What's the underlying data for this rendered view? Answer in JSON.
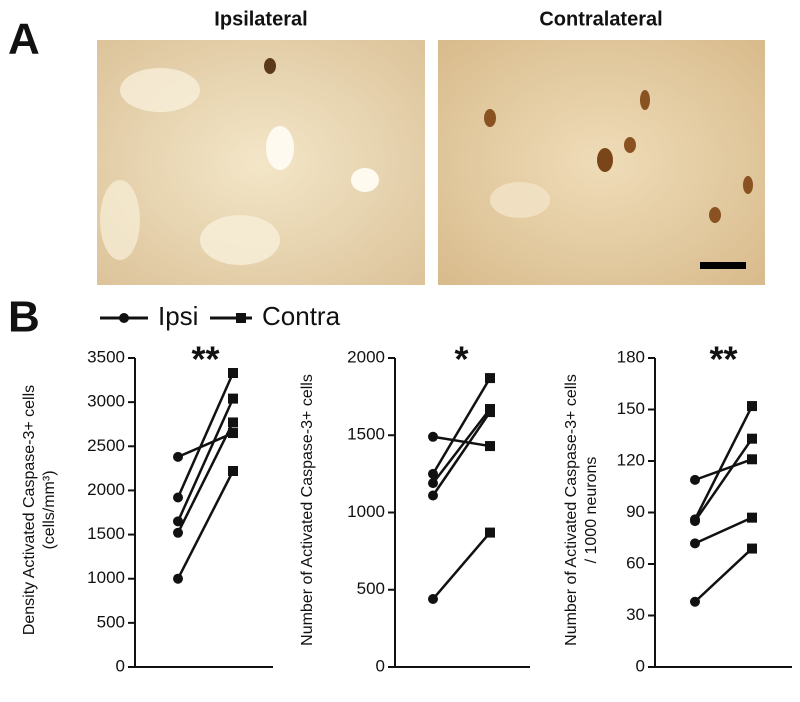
{
  "panel_a": {
    "label": "A",
    "images": [
      {
        "title": "Ipsilateral"
      },
      {
        "title": "Contralateral"
      }
    ]
  },
  "panel_b": {
    "label": "B",
    "legend": [
      {
        "name": "Ipsi",
        "marker": "circle"
      },
      {
        "name": "Contra",
        "marker": "square"
      }
    ]
  },
  "chart_data": [
    {
      "type": "paired",
      "significance": "**",
      "ylabel": [
        "Density Activated Caspase-3+ cells",
        "(cells/mm³)"
      ],
      "ylim": [
        0,
        3500
      ],
      "yticks": [
        0,
        500,
        1000,
        1500,
        2000,
        2500,
        3000,
        3500
      ],
      "color": "#111111",
      "series": [
        {
          "values": [
            2380,
            2650
          ]
        },
        {
          "values": [
            1920,
            3330
          ]
        },
        {
          "values": [
            1650,
            3040
          ]
        },
        {
          "values": [
            1520,
            2770
          ]
        },
        {
          "values": [
            1000,
            2220
          ]
        }
      ]
    },
    {
      "type": "paired",
      "significance": "*",
      "ylabel": [
        "Number of Activated Caspase-3+ cells"
      ],
      "ylim": [
        0,
        2000
      ],
      "yticks": [
        0,
        500,
        1000,
        1500,
        2000
      ],
      "color": "#111111",
      "series": [
        {
          "values": [
            1490,
            1430
          ]
        },
        {
          "values": [
            1250,
            1870
          ]
        },
        {
          "values": [
            1190,
            1670
          ]
        },
        {
          "values": [
            1110,
            1650
          ]
        },
        {
          "values": [
            440,
            870
          ]
        }
      ]
    },
    {
      "type": "paired",
      "significance": "**",
      "ylabel": [
        "Number of Activated Caspase-3+ cells",
        "/ 1000 neurons"
      ],
      "ylim": [
        0,
        180
      ],
      "yticks": [
        0,
        30,
        60,
        90,
        120,
        150,
        180
      ],
      "color": "#111111",
      "series": [
        {
          "values": [
            109,
            121
          ]
        },
        {
          "values": [
            86,
            152
          ]
        },
        {
          "values": [
            85,
            133
          ]
        },
        {
          "values": [
            72,
            87
          ]
        },
        {
          "values": [
            38,
            69
          ]
        }
      ]
    }
  ]
}
